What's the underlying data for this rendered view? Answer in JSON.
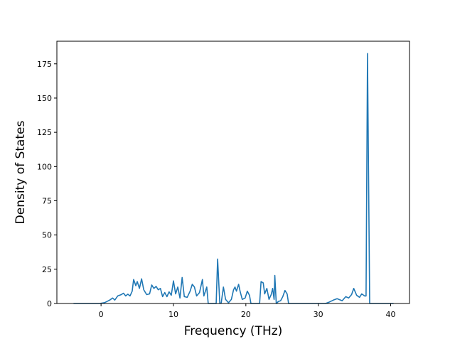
{
  "chart_data": {
    "type": "line",
    "title": "",
    "xlabel": "Frequency (THz)",
    "ylabel": "Density of States",
    "xlim": [
      -6.1,
      42.6
    ],
    "ylim": [
      0,
      191.5
    ],
    "xticks": [
      0,
      10,
      20,
      30,
      40
    ],
    "yticks": [
      0,
      25,
      50,
      75,
      100,
      125,
      150,
      175
    ],
    "grid": false,
    "legend": "none",
    "color": "#1f77b4",
    "series": [
      {
        "points": [
          [
            -3.8,
            0
          ],
          [
            -0.2,
            0
          ],
          [
            0.5,
            0.6
          ],
          [
            1.2,
            2.5
          ],
          [
            1.6,
            4
          ],
          [
            1.9,
            2.5
          ],
          [
            2.3,
            5.5
          ],
          [
            2.8,
            6.5
          ],
          [
            3.1,
            7.5
          ],
          [
            3.4,
            5.5
          ],
          [
            3.7,
            6.8
          ],
          [
            4.0,
            5.5
          ],
          [
            4.3,
            9
          ],
          [
            4.5,
            17.5
          ],
          [
            4.8,
            13
          ],
          [
            5.0,
            16
          ],
          [
            5.3,
            11
          ],
          [
            5.6,
            18
          ],
          [
            5.9,
            10
          ],
          [
            6.3,
            6.5
          ],
          [
            6.7,
            7
          ],
          [
            7.0,
            13.5
          ],
          [
            7.3,
            11
          ],
          [
            7.6,
            12.5
          ],
          [
            7.9,
            10
          ],
          [
            8.2,
            11
          ],
          [
            8.5,
            5
          ],
          [
            8.8,
            8
          ],
          [
            9.1,
            5
          ],
          [
            9.4,
            8.5
          ],
          [
            9.7,
            6
          ],
          [
            10.0,
            16.5
          ],
          [
            10.3,
            7
          ],
          [
            10.6,
            12
          ],
          [
            10.9,
            4
          ],
          [
            11.2,
            19
          ],
          [
            11.5,
            5
          ],
          [
            11.9,
            4.5
          ],
          [
            12.3,
            9
          ],
          [
            12.6,
            14
          ],
          [
            12.9,
            12
          ],
          [
            13.2,
            5.5
          ],
          [
            13.6,
            8
          ],
          [
            14.0,
            17.5
          ],
          [
            14.2,
            5.5
          ],
          [
            14.6,
            12
          ],
          [
            14.8,
            0
          ],
          [
            15.9,
            0
          ],
          [
            16.1,
            32.5
          ],
          [
            16.4,
            0
          ],
          [
            16.6,
            0.5
          ],
          [
            16.9,
            12
          ],
          [
            17.2,
            3
          ],
          [
            17.6,
            0.5
          ],
          [
            18.0,
            3
          ],
          [
            18.3,
            10
          ],
          [
            18.5,
            12
          ],
          [
            18.7,
            9
          ],
          [
            19.0,
            14
          ],
          [
            19.2,
            9
          ],
          [
            19.5,
            3
          ],
          [
            19.9,
            4
          ],
          [
            20.2,
            9
          ],
          [
            20.5,
            6
          ],
          [
            20.7,
            0
          ],
          [
            21.9,
            0
          ],
          [
            22.1,
            16
          ],
          [
            22.4,
            15
          ],
          [
            22.6,
            7
          ],
          [
            22.9,
            11
          ],
          [
            23.2,
            3
          ],
          [
            23.5,
            6.5
          ],
          [
            23.7,
            11
          ],
          [
            23.9,
            3
          ],
          [
            24.0,
            20.5
          ],
          [
            24.2,
            0
          ],
          [
            24.5,
            1.5
          ],
          [
            24.8,
            2
          ],
          [
            25.1,
            5
          ],
          [
            25.4,
            9.5
          ],
          [
            25.7,
            7
          ],
          [
            25.9,
            0
          ],
          [
            31.0,
            0
          ],
          [
            31.5,
            1
          ],
          [
            32.1,
            2.5
          ],
          [
            32.6,
            3.5
          ],
          [
            33.3,
            2
          ],
          [
            33.8,
            5
          ],
          [
            34.2,
            4
          ],
          [
            34.6,
            6.5
          ],
          [
            34.9,
            11
          ],
          [
            35.3,
            6
          ],
          [
            35.7,
            4.5
          ],
          [
            36.0,
            7
          ],
          [
            36.4,
            5.5
          ],
          [
            36.6,
            5.5
          ],
          [
            36.8,
            182.5
          ],
          [
            37.1,
            0
          ],
          [
            40.4,
            0
          ]
        ]
      }
    ]
  }
}
